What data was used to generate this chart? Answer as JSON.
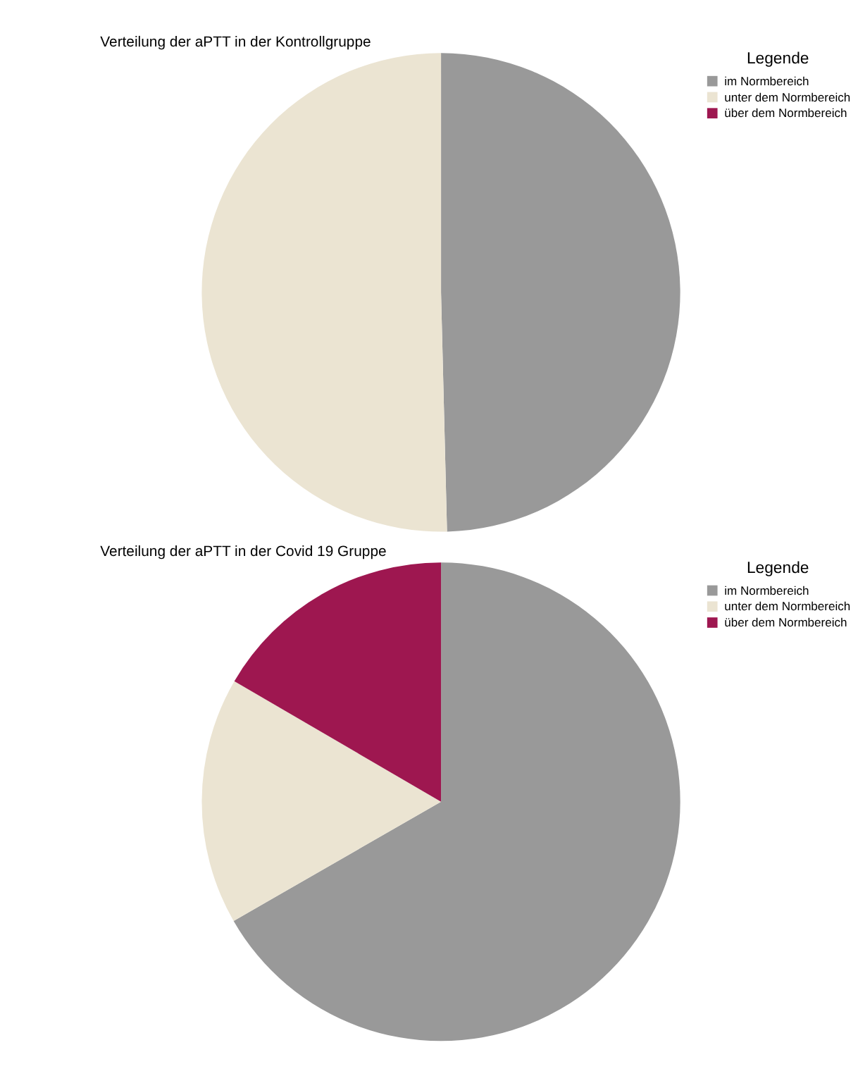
{
  "chart_data": [
    {
      "type": "pie",
      "title": "Verteilung der aPTT in der Kontrollgruppe",
      "legend_title": "Legende",
      "legend": "top right",
      "categories": [
        "im Normbereich",
        "unter dem Normbereich",
        "über dem Normbereich"
      ],
      "values": [
        49.6,
        50.4,
        0
      ],
      "colors": [
        "#999999",
        "#ebe4d2",
        "#9e1750"
      ]
    },
    {
      "type": "pie",
      "title": "Verteilung der aPTT in der Covid 19 Gruppe",
      "legend_title": "Legende",
      "legend": "top right",
      "categories": [
        "im Normbereich",
        "unter dem Normbereich",
        "über dem Normbereich"
      ],
      "values": [
        66.7,
        16.7,
        16.6
      ],
      "colors": [
        "#999999",
        "#ebe4d2",
        "#9e1750"
      ]
    }
  ]
}
